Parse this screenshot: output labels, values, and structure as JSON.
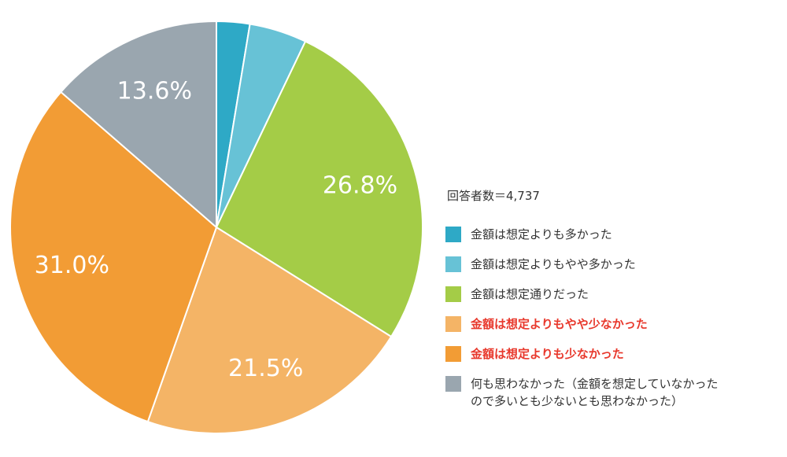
{
  "chart_data": {
    "type": "pie",
    "start_angle_deg": 0,
    "direction": "clockwise",
    "slices": [
      {
        "label": "金額は想定よりも多かった",
        "value": 2.6,
        "color": "#2ea9c6",
        "value_label": "",
        "emphasis": false
      },
      {
        "label": "金額は想定よりもやや多かった",
        "value": 4.5,
        "color": "#67c2d6",
        "value_label": "",
        "emphasis": false
      },
      {
        "label": "金額は想定通りだった",
        "value": 26.8,
        "color": "#a4cc47",
        "value_label": "26.8%",
        "emphasis": false
      },
      {
        "label": "金額は想定よりもやや少なかった",
        "value": 21.5,
        "color": "#f4b466",
        "value_label": "21.5%",
        "emphasis": true
      },
      {
        "label": "金額は想定よりも少なかった",
        "value": 31.0,
        "color": "#f29c35",
        "value_label": "31.0%",
        "emphasis": true
      },
      {
        "label": "何も思わなかった（金額を想定していなかった\nので多いとも少ないとも思わなかった）",
        "value": 13.6,
        "color": "#9aa6af",
        "value_label": "13.6%",
        "emphasis": false
      }
    ],
    "respondents": "回答者数＝4,737",
    "legend_position": "right"
  }
}
